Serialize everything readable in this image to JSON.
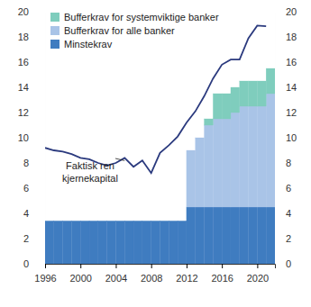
{
  "chart_data": {
    "type": "bar",
    "stacked": true,
    "grid": false,
    "x": [
      1996,
      1997,
      1998,
      1999,
      2000,
      2001,
      2002,
      2003,
      2004,
      2005,
      2006,
      2007,
      2008,
      2009,
      2010,
      2011,
      2012,
      2013,
      2014,
      2015,
      2016,
      2017,
      2018,
      2019,
      2020,
      2021
    ],
    "xlim": [
      1996,
      2022
    ],
    "xticks": [
      1996,
      2000,
      2004,
      2008,
      2012,
      2016,
      2020
    ],
    "ylim": [
      0,
      20
    ],
    "yticks": [
      0,
      2,
      4,
      6,
      8,
      10,
      12,
      14,
      16,
      18,
      20
    ],
    "y2lim": [
      0,
      20
    ],
    "y2ticks": [
      0,
      2,
      4,
      6,
      8,
      10,
      12,
      14,
      16,
      18,
      20
    ],
    "legend": "top-left",
    "series": [
      {
        "name": "Minstekrav",
        "type": "bar",
        "color": "#3f7cc0",
        "values": [
          3.4,
          3.4,
          3.4,
          3.4,
          3.4,
          3.4,
          3.4,
          3.4,
          3.4,
          3.4,
          3.4,
          3.4,
          3.4,
          3.4,
          3.4,
          3.4,
          4.5,
          4.5,
          4.5,
          4.5,
          4.5,
          4.5,
          4.5,
          4.5,
          4.5,
          4.5
        ]
      },
      {
        "name": "Bufferkrav for alle banker",
        "type": "bar",
        "color": "#a9c4e7",
        "values": [
          null,
          null,
          null,
          null,
          null,
          null,
          null,
          null,
          null,
          null,
          null,
          null,
          null,
          null,
          null,
          null,
          4.5,
          5.5,
          6.5,
          7,
          7,
          7.5,
          8,
          8,
          8,
          9
        ]
      },
      {
        "name": "Bufferkrav for systemviktige banker",
        "type": "bar",
        "color": "#7fcdbd",
        "values": [
          null,
          null,
          null,
          null,
          null,
          null,
          null,
          null,
          null,
          null,
          null,
          null,
          null,
          null,
          null,
          null,
          null,
          null,
          0.5,
          2,
          2,
          2,
          2,
          2,
          2,
          2
        ]
      },
      {
        "name": "Faktisk ren kjernekapital",
        "type": "line",
        "color": "#2b3a7e",
        "values": [
          9.2,
          9.0,
          8.9,
          8.7,
          8.4,
          8.3,
          8.0,
          7.8,
          8.0,
          8.4,
          7.7,
          8.2,
          7.2,
          8.8,
          9.4,
          10.1,
          11.2,
          12.1,
          13.3,
          14.7,
          15.8,
          16.2,
          16.2,
          17.9,
          18.9,
          18.85
        ]
      }
    ]
  }
}
